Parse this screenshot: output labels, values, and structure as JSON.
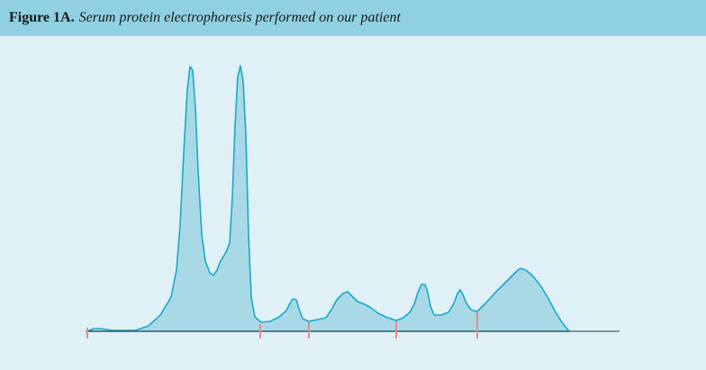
{
  "header": {
    "label": "Figure 1A.",
    "caption": "Serum protein electrophoresis performed on our patient"
  }
}
